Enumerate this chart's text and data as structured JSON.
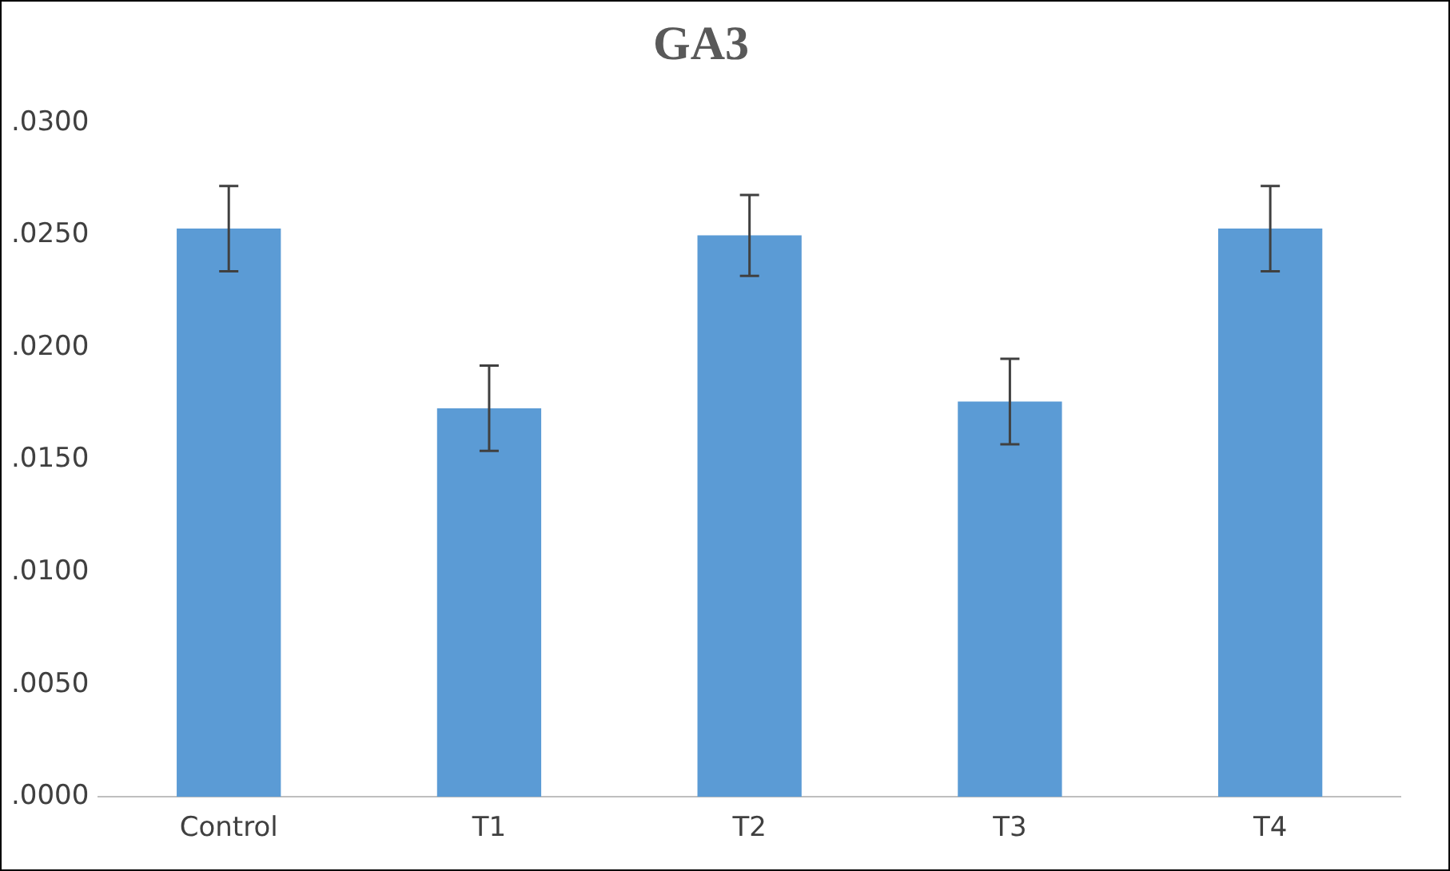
{
  "chart_data": {
    "type": "bar",
    "title": "GA3",
    "categories": [
      "Control",
      "T1",
      "T2",
      "T3",
      "T4"
    ],
    "values": [
      0.0253,
      0.0173,
      0.025,
      0.0176,
      0.0253
    ],
    "errors": [
      0.0019,
      0.0019,
      0.0018,
      0.0019,
      0.0019
    ],
    "color": "#5b9bd5",
    "ylim": [
      0,
      0.03
    ],
    "yticks": [
      {
        "value": 0,
        "label": ".0000"
      },
      {
        "value": 0.005,
        "label": ".0050"
      },
      {
        "value": 0.01,
        "label": ".0100"
      },
      {
        "value": 0.015,
        "label": ".0150"
      },
      {
        "value": 0.02,
        "label": ".0200"
      },
      {
        "value": 0.025,
        "label": ".0250"
      },
      {
        "value": 0.03,
        "label": ".0300"
      }
    ],
    "grid": false,
    "legend": false
  }
}
